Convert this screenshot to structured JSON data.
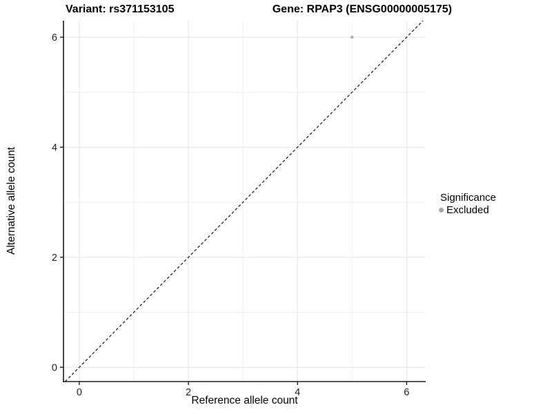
{
  "chart_data": {
    "type": "scatter",
    "titles": {
      "left": "Variant: rs371153105",
      "right": "Gene: RPAP3 (ENSG00000005175)"
    },
    "xlabel": "Reference allele count",
    "ylabel": "Alternative allele count",
    "xlim": [
      -0.29,
      6.35
    ],
    "ylim": [
      -0.26,
      6.3
    ],
    "x_ticks": [
      0,
      2,
      4,
      6
    ],
    "y_ticks": [
      0,
      2,
      4,
      6
    ],
    "x_minor_ticks": [
      1,
      3,
      5
    ],
    "y_minor_ticks": [
      1,
      3,
      5
    ],
    "grid": "major+minor",
    "series": [
      {
        "name": "Excluded",
        "color": "#b1b1b1",
        "point_radius": 2.3,
        "points": [
          {
            "x": 5,
            "y": 6
          }
        ]
      }
    ],
    "reference_line": {
      "equation": "y = x",
      "style": "dashed",
      "color": "#000000"
    },
    "legend": {
      "title": "Significance",
      "position": "right",
      "items": [
        {
          "label": "Excluded",
          "color": "#a6a6a6"
        }
      ]
    },
    "style": {
      "background": "#ffffff",
      "grid_major": "#e3e3e3",
      "grid_minor": "#efefef",
      "axis": "#1a1a1a",
      "tick_label": "#1f1f1f"
    }
  }
}
